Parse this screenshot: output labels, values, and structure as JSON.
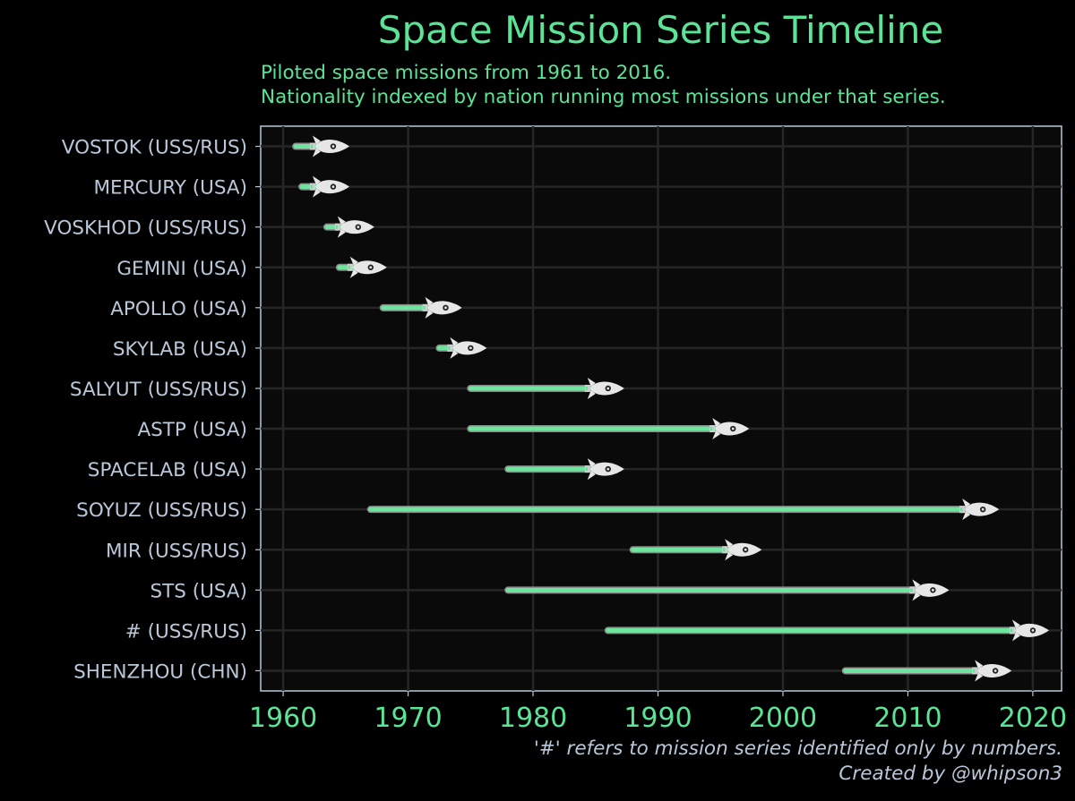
{
  "title": "Space Mission Series Timeline",
  "subtitle_lines": [
    "Piloted space missions from 1961 to 2016.",
    "Nationality indexed by nation running most missions under that series."
  ],
  "caption_lines": [
    "'#' refers to mission series identified only by numbers.",
    "Created by @whipson3"
  ],
  "colors": {
    "background": "#000000",
    "panel": "#0a0a0a",
    "grid": "#262626",
    "accent_green": "#5be397",
    "axis_text": "#b9c7d9",
    "bar": "#6ee59e",
    "bar_outline": "#8a8a8a",
    "rocket": "#e6e6e6"
  },
  "chart_data": {
    "type": "range-bar",
    "marker_icon": "rocket-icon",
    "xlim": [
      1958.2,
      2022.3
    ],
    "x_ticks": [
      1960,
      1970,
      1980,
      1990,
      2000,
      2010,
      2020
    ],
    "grid": true,
    "series": [
      {
        "category": "VOSTOK (USS/RUS)",
        "start": 1961,
        "end": 1963
      },
      {
        "category": "MERCURY (USA)",
        "start": 1961.5,
        "end": 1963
      },
      {
        "category": "VOSKHOD (USS/RUS)",
        "start": 1963.5,
        "end": 1965
      },
      {
        "category": "GEMINI (USA)",
        "start": 1964.5,
        "end": 1966
      },
      {
        "category": "APOLLO (USA)",
        "start": 1968,
        "end": 1972
      },
      {
        "category": "SKYLAB (USA)",
        "start": 1972.5,
        "end": 1974
      },
      {
        "category": "SALYUT (USS/RUS)",
        "start": 1975,
        "end": 1985
      },
      {
        "category": "ASTP (USA)",
        "start": 1975,
        "end": 1995
      },
      {
        "category": "SPACELAB (USA)",
        "start": 1978,
        "end": 1985
      },
      {
        "category": "SOYUZ (USS/RUS)",
        "start": 1967,
        "end": 2015
      },
      {
        "category": "MIR (USS/RUS)",
        "start": 1988,
        "end": 1996
      },
      {
        "category": "STS (USA)",
        "start": 1978,
        "end": 2011
      },
      {
        "category": "# (USS/RUS)",
        "start": 1986,
        "end": 2019
      },
      {
        "category": "SHENZHOU (CHN)",
        "start": 2005,
        "end": 2016
      }
    ]
  }
}
